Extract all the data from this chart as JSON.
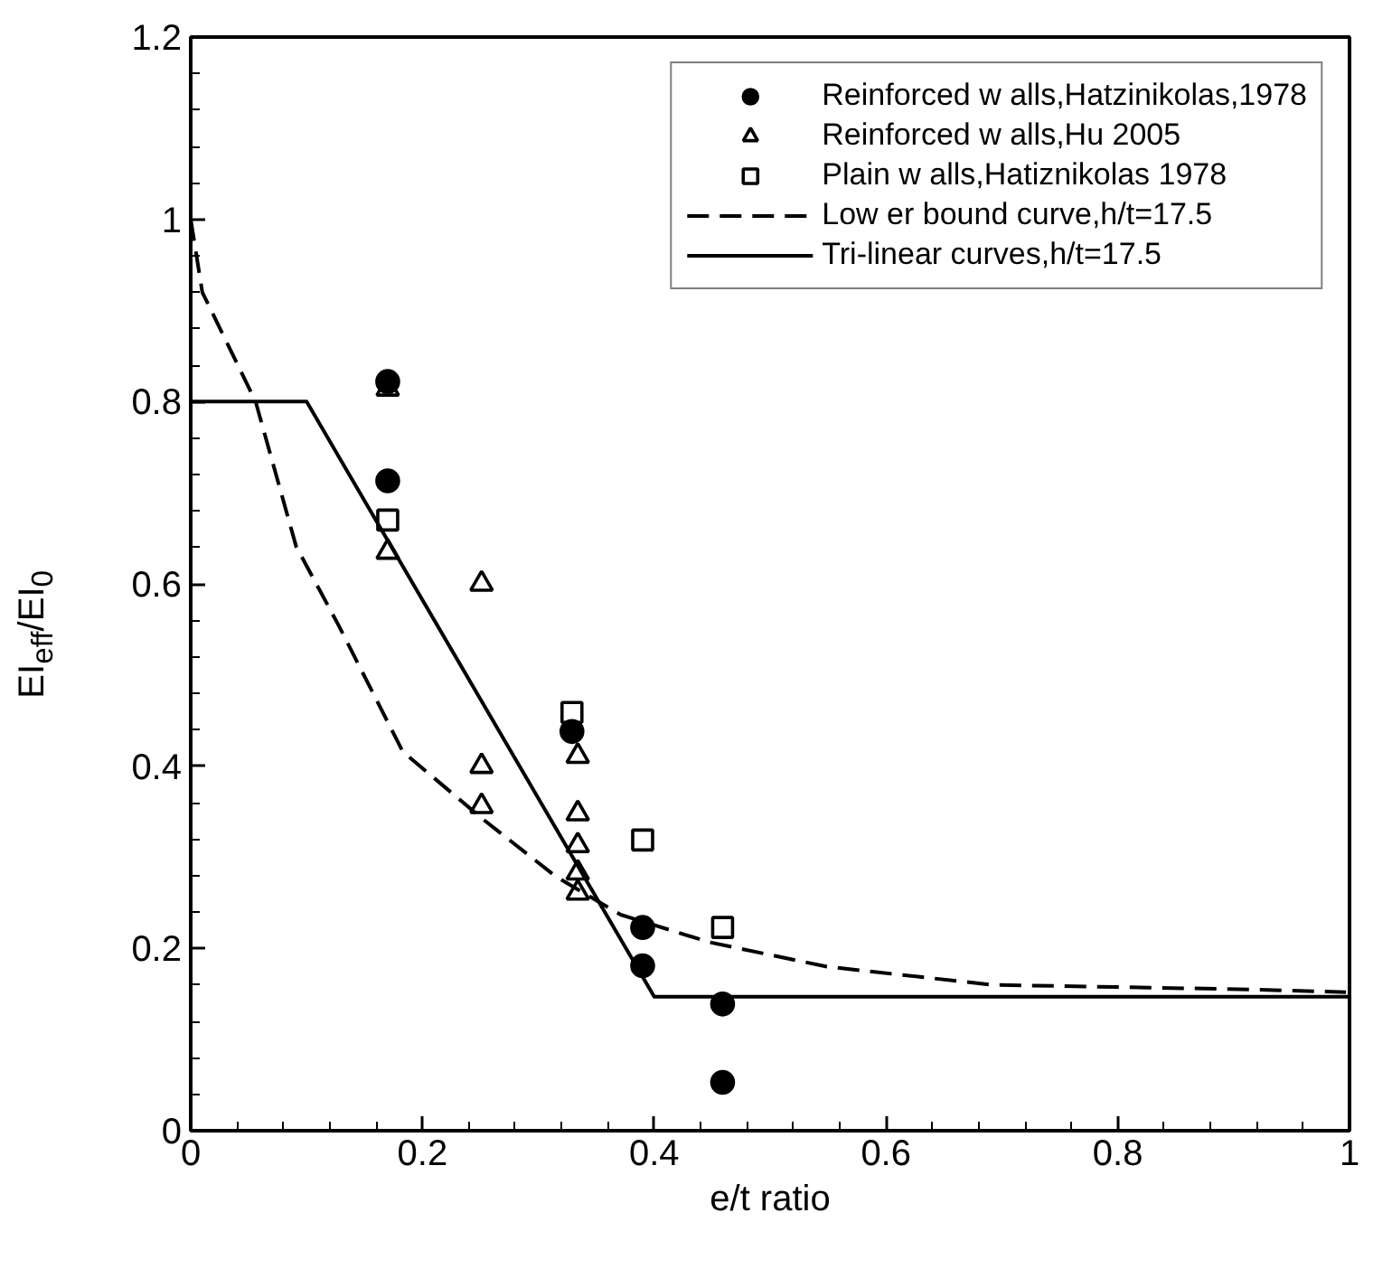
{
  "chart_data": {
    "type": "scatter",
    "xlabel": "e/t ratio",
    "ylabel": "EI$_{eff}$/EI$_{0}$",
    "xlim": [
      0,
      1
    ],
    "ylim": [
      0,
      1.2
    ],
    "xticks": [
      0,
      0.2,
      0.4,
      0.6,
      0.8,
      1
    ],
    "yticks": [
      0,
      0.2,
      0.4,
      0.6,
      0.8,
      1,
      1.2
    ],
    "grid": false,
    "legend": "top right",
    "series": [
      {
        "name": "Reinforced w alls,Hatzinikolas,1978",
        "marker": "circle",
        "color": "#000000",
        "x": [
          0.17,
          0.17,
          0.329,
          0.39,
          0.39,
          0.459,
          0.459
        ],
        "values": [
          0.822,
          0.713,
          0.438,
          0.223,
          0.181,
          0.139,
          0.053
        ]
      },
      {
        "name": "Reinforced w alls,Hu 2005",
        "marker": "triangle",
        "color": "#000000",
        "x": [
          0.17,
          0.17,
          0.251,
          0.251,
          0.251,
          0.334,
          0.334,
          0.334,
          0.334,
          0.334
        ],
        "values": [
          0.814,
          0.635,
          0.6,
          0.4,
          0.356,
          0.411,
          0.348,
          0.313,
          0.283,
          0.261
        ]
      },
      {
        "name": "Plain w alls,Hatiznikolas 1978",
        "marker": "square",
        "color": "#000000",
        "x": [
          0.17,
          0.329,
          0.39,
          0.459
        ],
        "values": [
          0.67,
          0.459,
          0.319,
          0.223
        ]
      },
      {
        "name": "Low er bound curve,h/t=17.5",
        "type": "line",
        "line_style": "dashed",
        "color": "#000000",
        "x": [
          0,
          0.01,
          0.056,
          0.091,
          0.127,
          0.183,
          0.251,
          0.315,
          0.371,
          0.447,
          0.549,
          0.692,
          0.916,
          0.997
        ],
        "values": [
          1.0,
          0.92,
          0.8,
          0.641,
          0.556,
          0.416,
          0.343,
          0.279,
          0.237,
          0.207,
          0.18,
          0.16,
          0.155,
          0.152
        ]
      },
      {
        "name": "Tri-linear curves,h/t=17.5",
        "type": "line",
        "line_style": "solid",
        "color": "#000000",
        "x": [
          0,
          0.1,
          0.4,
          1
        ],
        "values": [
          0.8,
          0.8,
          0.147,
          0.147
        ]
      }
    ]
  }
}
